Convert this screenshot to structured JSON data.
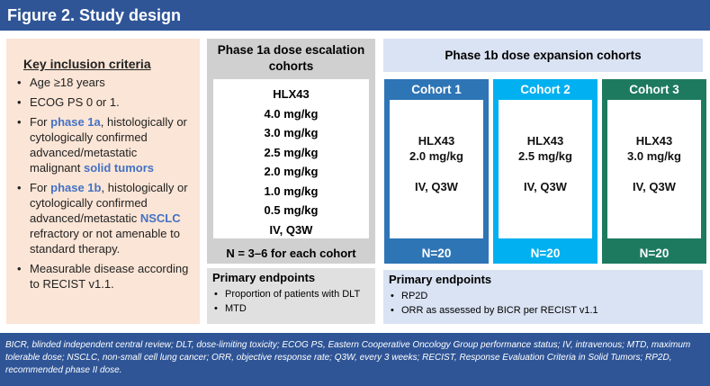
{
  "header": {
    "title": "Figure 2. Study design"
  },
  "inclusion": {
    "title": "Key inclusion criteria",
    "items": [
      [
        "Age ≥18 years"
      ],
      [
        "ECOG PS 0 or 1."
      ],
      [
        "For ",
        "phase 1a",
        ", histologically or cytologically confirmed advanced/metastatic malignant ",
        "solid tumors"
      ],
      [
        "For ",
        "phase 1b",
        ", histologically or cytologically confirmed advanced/metastatic ",
        "NSCLC",
        " refractory or not amenable to standard therapy."
      ],
      [
        "Measurable disease according to RECIST v1.1."
      ]
    ]
  },
  "phase1a": {
    "title": "Phase 1a dose escalation cohorts",
    "drug": "HLX43",
    "doses": [
      "4.0 mg/kg",
      "3.0 mg/kg",
      "2.5 mg/kg",
      "2.0 mg/kg",
      "1.0 mg/kg",
      "0.5 mg/kg"
    ],
    "route": "IV, Q3W",
    "n": "N = 3–6 for each cohort",
    "endpoints": {
      "title": "Primary endpoints",
      "items": [
        "Proportion of patients with DLT",
        "MTD"
      ]
    }
  },
  "phase1b": {
    "title": "Phase 1b dose expansion cohorts",
    "cohorts": [
      {
        "name": "Cohort 1",
        "drug": "HLX43",
        "dose": "2.0 mg/kg",
        "route": "IV, Q3W",
        "n": "N=20"
      },
      {
        "name": "Cohort 2",
        "drug": "HLX43",
        "dose": "2.5 mg/kg",
        "route": "IV, Q3W",
        "n": "N=20"
      },
      {
        "name": "Cohort 3",
        "drug": "HLX43",
        "dose": "3.0 mg/kg",
        "route": "IV, Q3W",
        "n": "N=20"
      }
    ],
    "endpoints": {
      "title": "Primary endpoints",
      "items": [
        "RP2D",
        "ORR as assessed by BICR per RECIST v1.1"
      ]
    }
  },
  "footer": {
    "text": "BICR, blinded independent central review; DLT, dose-limiting toxicity; ECOG PS, Eastern Cooperative Oncology Group performance status; IV, intravenous; MTD, maximum tolerable dose; NSCLC, non-small cell lung cancer; ORR, objective response rate; Q3W, every 3 weeks; RECIST, Response Evaluation Criteria in Solid Tumors; RP2D, recommended phase II dose."
  }
}
